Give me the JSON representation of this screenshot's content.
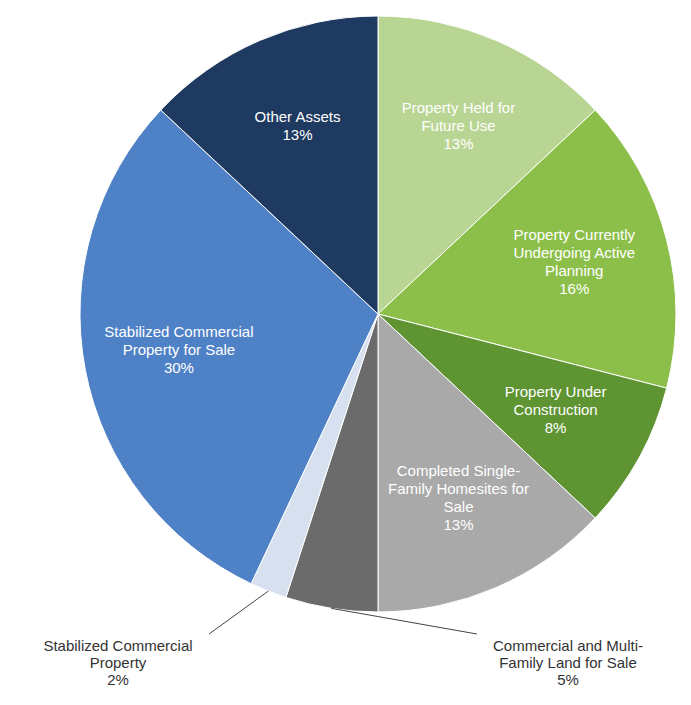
{
  "chart_data": {
    "type": "pie",
    "categories": [
      "Property Held for Future Use",
      "Property Currently Undergoing Active Planning",
      "Property Under Construction",
      "Completed Single-Family Homesites for Sale",
      "Commercial and Multi-Family Land for Sale",
      "Stabilized Commercial Property",
      "Stabilized Commercial Property for Sale",
      "Other Assets"
    ],
    "values": [
      13,
      16,
      8,
      13,
      5,
      2,
      30,
      13
    ],
    "value_labels": [
      "13%",
      "16%",
      "8%",
      "13%",
      "5%",
      "2%",
      "30%",
      "13%"
    ],
    "colors": [
      "#b9d594",
      "#8cbf4a",
      "#5e9431",
      "#a9a9a9",
      "#6b6b6b",
      "#d6e0ee",
      "#4f81c7",
      "#1f3a60"
    ],
    "data_labels": true
  }
}
